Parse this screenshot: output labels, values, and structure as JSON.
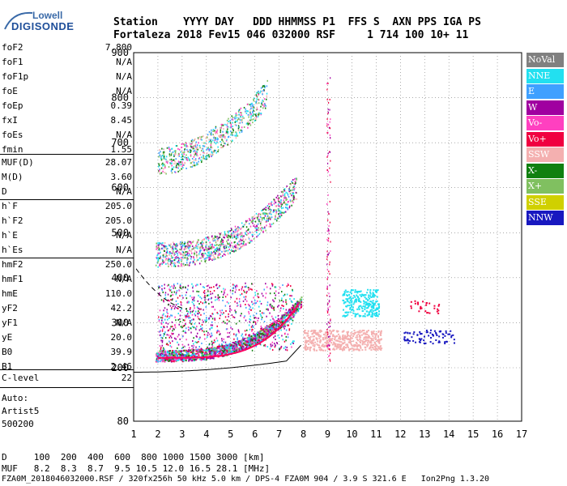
{
  "logo": {
    "line1": "Lowell",
    "line2": "DIGISONDE"
  },
  "header": {
    "row1": "Station    YYYY DAY   DDD HHMMSS P1  FFS S  AXN PPS IGA PS",
    "row2": "Fortaleza 2018 Fev15 046 032000 RSF     1 714 100 10+ 11"
  },
  "params": [
    {
      "name": "foF2",
      "value": "7.800"
    },
    {
      "name": "foF1",
      "value": "N/A"
    },
    {
      "name": "foF1p",
      "value": "N/A"
    },
    {
      "name": "foE",
      "value": "N/A"
    },
    {
      "name": "foEp",
      "value": "0.39"
    },
    {
      "name": "fxI",
      "value": "8.45"
    },
    {
      "name": "foEs",
      "value": "N/A"
    },
    {
      "name": "fmin",
      "value": "1.55"
    },
    {
      "name": "MUF(D)",
      "value": "28.07"
    },
    {
      "name": "M(D)",
      "value": "3.60"
    },
    {
      "name": "D",
      "value": "N/A"
    },
    {
      "name": "h`F",
      "value": "205.0"
    },
    {
      "name": "h`F2",
      "value": "205.0"
    },
    {
      "name": "h`E",
      "value": "N/A"
    },
    {
      "name": "h`Es",
      "value": "N/A"
    },
    {
      "name": "hmF2",
      "value": "250.0"
    },
    {
      "name": "hmF1",
      "value": "N/A"
    },
    {
      "name": "hmE",
      "value": "110.0"
    },
    {
      "name": "yF2",
      "value": "42.2"
    },
    {
      "name": "yF1",
      "value": "N/A"
    },
    {
      "name": "yE",
      "value": "20.0"
    },
    {
      "name": "B0",
      "value": "39.9"
    },
    {
      "name": "B1",
      "value": "2.46"
    },
    {
      "name": "C-level",
      "value": "22"
    }
  ],
  "auto": {
    "line1": "Auto:",
    "line2": "Artist5",
    "line3": "500200"
  },
  "legend": [
    {
      "label": "NoVal",
      "color": "#808080"
    },
    {
      "label": "NNE",
      "color": "#22e0f0"
    },
    {
      "label": "E",
      "color": "#3fa0ff"
    },
    {
      "label": "W",
      "color": "#a000a0"
    },
    {
      "label": "Vo-",
      "color": "#ff40c0"
    },
    {
      "label": "Vo+",
      "color": "#f00040"
    },
    {
      "label": "SSW",
      "color": "#f4b0b0"
    },
    {
      "label": "X-",
      "color": "#108010"
    },
    {
      "label": "X+",
      "color": "#80c060"
    },
    {
      "label": "SSE",
      "color": "#d0d000"
    },
    {
      "label": "NNW",
      "color": "#1818c0"
    }
  ],
  "chart_data": {
    "type": "scatter",
    "xlim": [
      1,
      17
    ],
    "ylim": [
      80,
      900
    ],
    "x_ticks": [
      1,
      2,
      3,
      4,
      5,
      6,
      7,
      8,
      9,
      10,
      11,
      12,
      13,
      14,
      15,
      16,
      17
    ],
    "y_ticks": [
      80,
      200,
      300,
      400,
      500,
      600,
      700,
      800,
      900
    ],
    "grid": true
  },
  "footer": {
    "line1": "D     100  200  400  600  800 1000 1500 3000 [km]",
    "line2": "MUF   8.2  8.3  8.7  9.5 10.5 12.0 16.5 28.1 [MHz]",
    "line3": "FZA0M_2018046032000.RSF / 320fx256h 50 kHz 5.0 km / DPS-4 FZA0M 904 / 3.9 S 321.6 E   Ion2Png 1.3.20"
  }
}
